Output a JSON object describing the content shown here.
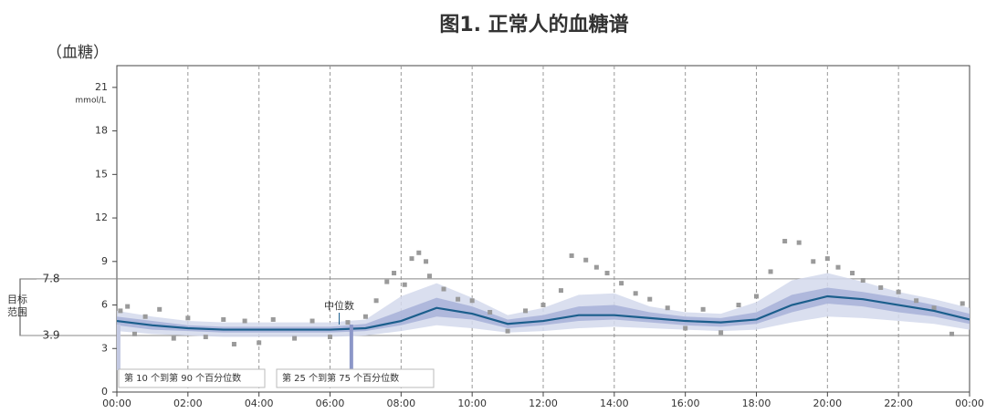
{
  "chart_data": {
    "type": "line",
    "title": "图1. 正常人的血糖谱",
    "y_label": "（血糖）",
    "unit": "mmol/L",
    "x": [
      0,
      1,
      2,
      3,
      4,
      5,
      6,
      7,
      8,
      9,
      10,
      11,
      12,
      13,
      14,
      15,
      16,
      17,
      18,
      19,
      20,
      21,
      22,
      23,
      24
    ],
    "xlim": [
      0,
      24
    ],
    "xticks": [
      {
        "value": 0,
        "label": "00:00"
      },
      {
        "value": 2,
        "label": "02:00"
      },
      {
        "value": 4,
        "label": "04:00"
      },
      {
        "value": 6,
        "label": "06:00"
      },
      {
        "value": 8,
        "label": "08:00"
      },
      {
        "value": 10,
        "label": "10:00"
      },
      {
        "value": 12,
        "label": "12:00"
      },
      {
        "value": 14,
        "label": "14:00"
      },
      {
        "value": 16,
        "label": "16:00"
      },
      {
        "value": 18,
        "label": "18:00"
      },
      {
        "value": 20,
        "label": "20:00"
      },
      {
        "value": 22,
        "label": "22:00"
      },
      {
        "value": 24,
        "label": "00:00"
      }
    ],
    "ylim": [
      0,
      22.5
    ],
    "yticks": [
      0,
      3,
      6,
      9,
      12,
      15,
      18,
      21
    ],
    "xgrid": true,
    "target_label": "目标范围",
    "target_range": [
      3.9,
      7.8
    ],
    "series": [
      {
        "name": "中位数",
        "color": "#1b5e8c",
        "values": [
          4.9,
          4.6,
          4.4,
          4.3,
          4.3,
          4.3,
          4.3,
          4.4,
          4.9,
          5.8,
          5.4,
          4.7,
          4.9,
          5.3,
          5.3,
          5.1,
          4.9,
          4.8,
          5.0,
          6.0,
          6.6,
          6.4,
          6.0,
          5.6,
          5.0
        ]
      }
    ],
    "bands": [
      {
        "name": "第 10 个到第 90 个百分位数",
        "color": "#d4d9ec",
        "lower": [
          4.2,
          4.0,
          3.9,
          3.8,
          3.8,
          3.8,
          3.8,
          3.9,
          4.2,
          4.6,
          4.4,
          4.1,
          4.2,
          4.4,
          4.5,
          4.4,
          4.3,
          4.2,
          4.3,
          4.8,
          5.2,
          5.1,
          4.9,
          4.7,
          4.3
        ],
        "upper": [
          5.6,
          5.2,
          4.9,
          4.8,
          4.8,
          4.8,
          4.8,
          5.0,
          6.6,
          7.5,
          6.5,
          5.3,
          5.8,
          6.7,
          6.8,
          5.9,
          5.5,
          5.4,
          6.2,
          7.7,
          8.2,
          7.6,
          6.9,
          6.4,
          5.8
        ]
      },
      {
        "name": "第 25 个到第 75 个百分位数",
        "color": "#a7b1d8",
        "lower": [
          4.6,
          4.3,
          4.2,
          4.1,
          4.1,
          4.1,
          4.1,
          4.2,
          4.6,
          5.2,
          5.0,
          4.4,
          4.6,
          4.9,
          5.0,
          4.8,
          4.6,
          4.5,
          4.7,
          5.5,
          6.1,
          5.9,
          5.5,
          5.2,
          4.7
        ],
        "upper": [
          5.2,
          4.9,
          4.6,
          4.5,
          4.5,
          4.5,
          4.5,
          4.7,
          5.6,
          6.5,
          5.9,
          5.0,
          5.3,
          5.9,
          6.0,
          5.5,
          5.2,
          5.1,
          5.5,
          6.7,
          7.2,
          6.9,
          6.5,
          6.0,
          5.4
        ]
      }
    ],
    "points": {
      "color": "#9a9a9a",
      "x": [
        0.1,
        0.3,
        0.5,
        0.8,
        1.2,
        1.6,
        2.0,
        2.5,
        3.0,
        3.3,
        3.6,
        4.0,
        4.4,
        5.0,
        5.5,
        6.0,
        6.5,
        7.0,
        7.3,
        7.6,
        7.8,
        8.1,
        8.3,
        8.5,
        8.7,
        8.8,
        9.2,
        9.6,
        10.0,
        10.5,
        11.0,
        11.5,
        12.0,
        12.5,
        12.8,
        13.2,
        13.5,
        13.8,
        14.2,
        14.6,
        15.0,
        15.5,
        16.0,
        16.5,
        17.0,
        17.5,
        18.0,
        18.4,
        18.8,
        19.2,
        19.6,
        20.0,
        20.3,
        20.7,
        21.0,
        21.5,
        22.0,
        22.5,
        23.0,
        23.5,
        23.8
      ],
      "y": [
        5.6,
        5.9,
        4.0,
        5.2,
        5.7,
        3.7,
        5.1,
        3.8,
        5.0,
        3.3,
        4.9,
        3.4,
        5.0,
        3.7,
        4.9,
        3.8,
        4.8,
        5.2,
        6.3,
        7.6,
        8.2,
        7.4,
        9.2,
        9.6,
        9.0,
        8.0,
        7.1,
        6.4,
        6.3,
        5.5,
        4.2,
        5.6,
        6.0,
        7.0,
        9.4,
        9.1,
        8.6,
        8.2,
        7.5,
        6.8,
        6.4,
        5.8,
        4.4,
        5.7,
        4.1,
        6.0,
        6.6,
        8.3,
        10.4,
        10.3,
        9.0,
        9.2,
        8.6,
        8.2,
        7.7,
        7.2,
        6.9,
        6.3,
        5.8,
        4.0,
        6.1
      ]
    }
  }
}
